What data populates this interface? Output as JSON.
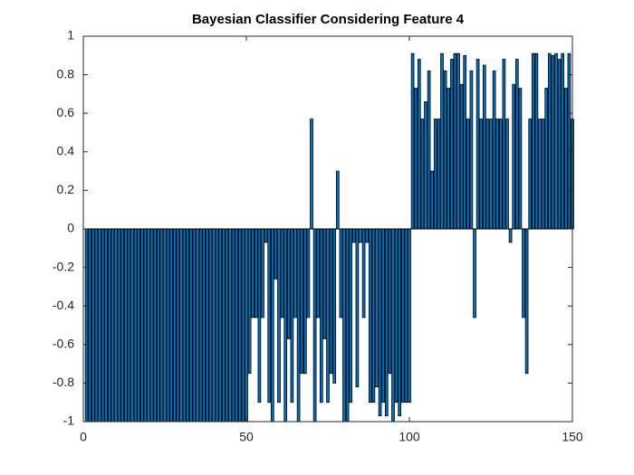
{
  "chart_data": {
    "type": "bar",
    "title": "Bayesian Classifier Considering Feature 4",
    "x": [
      1,
      2,
      3,
      4,
      5,
      6,
      7,
      8,
      9,
      10,
      11,
      12,
      13,
      14,
      15,
      16,
      17,
      18,
      19,
      20,
      21,
      22,
      23,
      24,
      25,
      26,
      27,
      28,
      29,
      30,
      31,
      32,
      33,
      34,
      35,
      36,
      37,
      38,
      39,
      40,
      41,
      42,
      43,
      44,
      45,
      46,
      47,
      48,
      49,
      50,
      51,
      52,
      53,
      54,
      55,
      56,
      57,
      58,
      59,
      60,
      61,
      62,
      63,
      64,
      65,
      66,
      67,
      68,
      69,
      70,
      71,
      72,
      73,
      74,
      75,
      76,
      77,
      78,
      79,
      80,
      81,
      82,
      83,
      84,
      85,
      86,
      87,
      88,
      89,
      90,
      91,
      92,
      93,
      94,
      95,
      96,
      97,
      98,
      99,
      100,
      101,
      102,
      103,
      104,
      105,
      106,
      107,
      108,
      109,
      110,
      111,
      112,
      113,
      114,
      115,
      116,
      117,
      118,
      119,
      120,
      121,
      122,
      123,
      124,
      125,
      126,
      127,
      128,
      129,
      130,
      131,
      132,
      133,
      134,
      135,
      136,
      137,
      138,
      139,
      140,
      141,
      142,
      143,
      144,
      145,
      146,
      147,
      148,
      149,
      150
    ],
    "values": [
      -1,
      -1,
      -1,
      -1,
      -1,
      -1,
      -1,
      -1,
      -1,
      -1,
      -1,
      -1,
      -1,
      -1,
      -1,
      -1,
      -1,
      -1,
      -1,
      -1,
      -1,
      -1,
      -1,
      -1,
      -1,
      -1,
      -1,
      -1,
      -1,
      -1,
      -1,
      -1,
      -1,
      -1,
      -1,
      -1,
      -1,
      -1,
      -1,
      -1,
      -1,
      -1,
      -1,
      -1,
      -1,
      -1,
      -1,
      -1,
      -1,
      -1,
      -0.75,
      -0.46,
      -0.46,
      -0.9,
      -0.46,
      -0.07,
      -0.9,
      -1,
      -0.26,
      -0.9,
      -0.46,
      -1,
      -0.57,
      -0.9,
      -0.46,
      -1,
      -0.75,
      -0.75,
      -0.46,
      0.57,
      -1,
      -0.46,
      -0.9,
      -0.57,
      -0.9,
      -0.75,
      -0.8,
      0.3,
      -0.46,
      -1,
      -1,
      -0.9,
      -0.07,
      -0.82,
      -0.07,
      -0.46,
      -0.07,
      -0.9,
      -0.9,
      -0.82,
      -0.97,
      -0.9,
      -0.97,
      -0.75,
      -1,
      -0.9,
      -0.97,
      -0.9,
      -0.9,
      -0.9,
      0.91,
      0.73,
      0.88,
      0.57,
      0.66,
      0.82,
      0.3,
      0.57,
      0.57,
      0.91,
      0.82,
      0.73,
      0.88,
      0.91,
      0.91,
      0.75,
      0.9,
      0.57,
      0.82,
      -0.46,
      0.88,
      0.57,
      0.85,
      0.57,
      0.57,
      0.82,
      0.57,
      0.57,
      0.88,
      0.57,
      -0.07,
      0.75,
      0.88,
      0.73,
      -0.46,
      -0.75,
      0.57,
      0.91,
      0.91,
      0.57,
      0.57,
      0.73,
      0.91,
      0.9,
      0.91,
      0.88,
      0.91,
      0.73,
      0.91,
      0.57
    ],
    "color": "#0072bd",
    "xlim": [
      0,
      150
    ],
    "xticks": [
      0,
      50,
      100,
      150
    ],
    "ylim": [
      -1,
      1
    ],
    "yticks": [
      -1,
      -0.8,
      -0.6,
      -0.4,
      -0.2,
      0,
      0.2,
      0.4,
      0.6,
      0.8,
      1
    ],
    "grid": false
  }
}
